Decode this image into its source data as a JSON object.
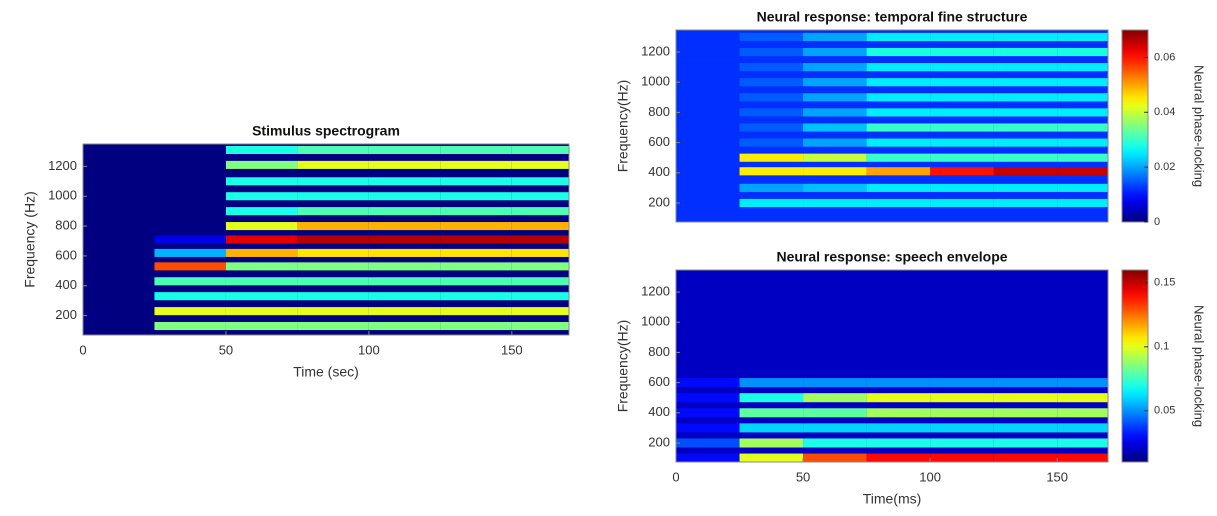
{
  "chart_data": [
    {
      "type": "heatmap",
      "title": "Stimulus spectrogram",
      "xlabel": "Time (sec)",
      "ylabel": "Frequency (Hz)",
      "colormap": "jet",
      "clim": [
        0,
        1
      ],
      "background": 0,
      "xlim": [
        0,
        170
      ],
      "ylim": [
        70,
        1350
      ],
      "xticks": [
        0,
        50,
        100,
        150
      ],
      "yticks": [
        200,
        400,
        600,
        800,
        1000,
        1200
      ],
      "x_edges": [
        0,
        25,
        50,
        75,
        100,
        125,
        150,
        170
      ],
      "y": [
        130,
        230,
        330,
        430,
        530,
        620,
        710,
        800,
        900,
        1000,
        1100,
        1210,
        1310
      ],
      "z": [
        [
          0,
          0.5,
          0.5,
          0.5,
          0.5,
          0.5,
          0.5
        ],
        [
          0,
          0.6,
          0.6,
          0.6,
          0.6,
          0.6,
          0.6
        ],
        [
          0,
          0.4,
          0.4,
          0.4,
          0.4,
          0.4,
          0.4
        ],
        [
          0,
          0.45,
          0.45,
          0.45,
          0.45,
          0.45,
          0.45
        ],
        [
          0,
          0.8,
          0.5,
          0.5,
          0.5,
          0.5,
          0.5
        ],
        [
          0,
          0.3,
          0.7,
          0.65,
          0.65,
          0.65,
          0.65
        ],
        [
          0,
          0.1,
          0.9,
          0.95,
          0.95,
          0.95,
          0.95
        ],
        [
          0,
          0,
          0.6,
          0.7,
          0.7,
          0.7,
          0.7
        ],
        [
          0,
          0,
          0.4,
          0.45,
          0.45,
          0.45,
          0.45
        ],
        [
          0,
          0,
          0.4,
          0.4,
          0.4,
          0.4,
          0.4
        ],
        [
          0,
          0,
          0.4,
          0.4,
          0.4,
          0.4,
          0.4
        ],
        [
          0,
          0,
          0.5,
          0.6,
          0.6,
          0.6,
          0.6
        ],
        [
          0,
          0,
          0.4,
          0.45,
          0.45,
          0.45,
          0.45
        ]
      ]
    },
    {
      "type": "heatmap",
      "title": "Neural response: temporal fine structure",
      "ylabel": "Frequency(Hz)",
      "colormap": "jet",
      "clim": [
        0,
        0.07
      ],
      "background": 0.012,
      "colorbar_ticks": [
        0,
        0.02,
        0.04,
        0.06
      ],
      "colorbar_label": "Neural phase-locking",
      "xlim": [
        0,
        170
      ],
      "ylim": [
        74,
        1346
      ],
      "yticks": [
        200,
        400,
        600,
        800,
        1000,
        1200
      ],
      "x_edges": [
        0,
        25,
        50,
        75,
        100,
        125,
        150,
        170
      ],
      "y": [
        200,
        300,
        410,
        500,
        600,
        700,
        800,
        900,
        1000,
        1100,
        1200,
        1300
      ],
      "z": [
        [
          0.012,
          0.025,
          0.025,
          0.025,
          0.025,
          0.025,
          0.025
        ],
        [
          0.012,
          0.02,
          0.022,
          0.025,
          0.025,
          0.025,
          0.025
        ],
        [
          0.012,
          0.045,
          0.045,
          0.05,
          0.06,
          0.065,
          0.065
        ],
        [
          0.012,
          0.045,
          0.04,
          0.03,
          0.03,
          0.03,
          0.03
        ],
        [
          0.012,
          0.015,
          0.02,
          0.025,
          0.025,
          0.025,
          0.025
        ],
        [
          0.012,
          0.015,
          0.022,
          0.03,
          0.03,
          0.03,
          0.03
        ],
        [
          0.012,
          0.015,
          0.02,
          0.025,
          0.025,
          0.025,
          0.025
        ],
        [
          0.012,
          0.015,
          0.02,
          0.025,
          0.025,
          0.025,
          0.025
        ],
        [
          0.012,
          0.015,
          0.02,
          0.025,
          0.025,
          0.025,
          0.025
        ],
        [
          0.012,
          0.015,
          0.02,
          0.025,
          0.025,
          0.025,
          0.025
        ],
        [
          0.012,
          0.015,
          0.02,
          0.028,
          0.028,
          0.028,
          0.028
        ],
        [
          0.012,
          0.015,
          0.02,
          0.025,
          0.025,
          0.025,
          0.025
        ]
      ]
    },
    {
      "type": "heatmap",
      "title": "Neural response: speech envelope",
      "xlabel": "Time(ms)",
      "ylabel": "Frequency(Hz)",
      "colormap": "jet",
      "clim": [
        0.01,
        0.16
      ],
      "background": 0.02,
      "colorbar_ticks": [
        0.05,
        0.1,
        0.15
      ],
      "colorbar_label": "Neural phase-locking",
      "xlim": [
        0,
        170
      ],
      "ylim": [
        74,
        1346
      ],
      "xticks": [
        0,
        50,
        100,
        150
      ],
      "yticks": [
        200,
        400,
        600,
        800,
        1000,
        1200
      ],
      "x_edges": [
        0,
        25,
        50,
        75,
        100,
        125,
        150,
        170
      ],
      "y": [
        100,
        200,
        300,
        400,
        500,
        600
      ],
      "z": [
        [
          0.03,
          0.1,
          0.13,
          0.14,
          0.14,
          0.14,
          0.14
        ],
        [
          0.04,
          0.09,
          0.07,
          0.07,
          0.07,
          0.07,
          0.07
        ],
        [
          0.03,
          0.06,
          0.06,
          0.06,
          0.06,
          0.06,
          0.06
        ],
        [
          0.03,
          0.08,
          0.08,
          0.09,
          0.09,
          0.09,
          0.09
        ],
        [
          0.03,
          0.07,
          0.09,
          0.1,
          0.1,
          0.1,
          0.1
        ],
        [
          0.03,
          0.05,
          0.05,
          0.05,
          0.05,
          0.05,
          0.05
        ]
      ]
    }
  ]
}
